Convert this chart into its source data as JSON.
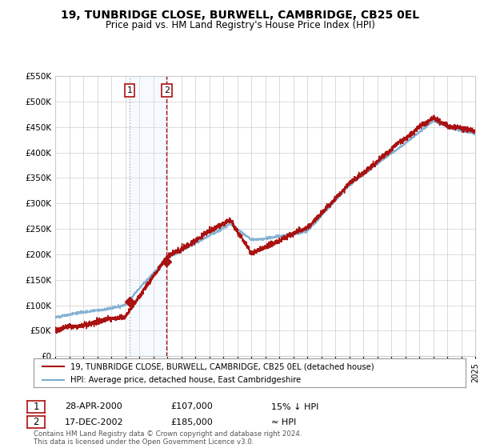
{
  "title": "19, TUNBRIDGE CLOSE, BURWELL, CAMBRIDGE, CB25 0EL",
  "subtitle": "Price paid vs. HM Land Registry's House Price Index (HPI)",
  "legend_line1": "19, TUNBRIDGE CLOSE, BURWELL, CAMBRIDGE, CB25 0EL (detached house)",
  "legend_line2": "HPI: Average price, detached house, East Cambridgeshire",
  "transaction1_date": "28-APR-2000",
  "transaction1_price": "£107,000",
  "transaction1_hpi": "15% ↓ HPI",
  "transaction2_date": "17-DEC-2002",
  "transaction2_price": "£185,000",
  "transaction2_hpi": "≈ HPI",
  "footer": "Contains HM Land Registry data © Crown copyright and database right 2024.\nThis data is licensed under the Open Government Licence v3.0.",
  "hpi_color": "#7aabcf",
  "price_color": "#aa1111",
  "highlight_fill": "#ddeeff",
  "point1_x": 2000.32,
  "point1_y": 107000,
  "point2_x": 2002.96,
  "point2_y": 185000,
  "xmin": 1995,
  "xmax": 2025,
  "ymin": 0,
  "ymax": 550000,
  "yticks": [
    0,
    50000,
    100000,
    150000,
    200000,
    250000,
    300000,
    350000,
    400000,
    450000,
    500000,
    550000
  ]
}
